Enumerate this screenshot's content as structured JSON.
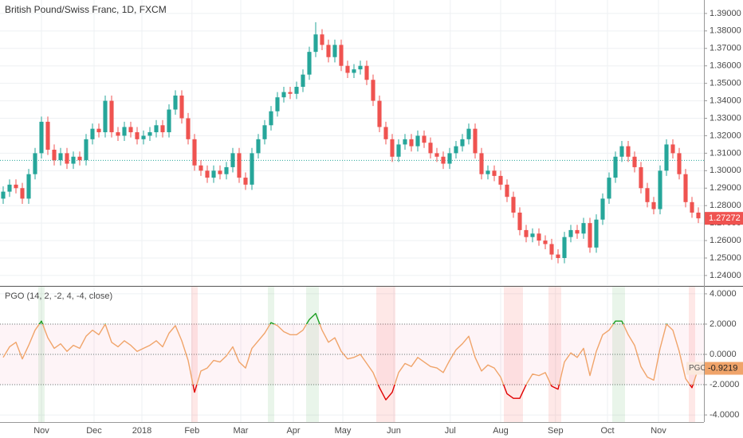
{
  "chart_data": [
    {
      "type": "candlestick",
      "title": "British Pound/Swiss Franc, 1D, FXCM",
      "up_color": "#26a69a",
      "down_color": "#ef5350",
      "ref_line": 1.3059,
      "ref_color": "#26a69a",
      "grid": true,
      "xlim": [
        -0.5,
        109.875
      ],
      "ylim": [
        1.2345,
        1.3977
      ],
      "yticks": [
        {
          "value": 1.39,
          "label": "1.39000"
        },
        {
          "value": 1.38,
          "label": "1.38000"
        },
        {
          "value": 1.37,
          "label": "1.37000"
        },
        {
          "value": 1.36,
          "label": "1.36000"
        },
        {
          "value": 1.35,
          "label": "1.35000"
        },
        {
          "value": 1.34,
          "label": "1.34000"
        },
        {
          "value": 1.33,
          "label": "1.33000"
        },
        {
          "value": 1.32,
          "label": "1.32000"
        },
        {
          "value": 1.31,
          "label": "1.31000"
        },
        {
          "value": 1.3,
          "label": "1.30000"
        },
        {
          "value": 1.29,
          "label": "1.29000"
        },
        {
          "value": 1.28,
          "label": "1.28000"
        },
        {
          "value": 1.27,
          "label": "1.27000"
        },
        {
          "value": 1.26,
          "label": "1.26000"
        },
        {
          "value": 1.25,
          "label": "1.25000"
        },
        {
          "value": 1.24,
          "label": "1.24000"
        }
      ],
      "open": [
        1.284,
        1.288,
        1.292,
        1.29,
        1.284,
        1.298,
        1.31,
        1.328,
        1.312,
        1.306,
        1.31,
        1.304,
        1.308,
        1.306,
        1.318,
        1.324,
        1.322,
        1.34,
        1.322,
        1.32,
        1.325,
        1.322,
        1.318,
        1.32,
        1.322,
        1.326,
        1.322,
        1.335,
        1.343,
        1.33,
        1.318,
        1.303,
        1.3,
        1.296,
        1.3,
        1.298,
        1.302,
        1.31,
        1.296,
        1.292,
        1.31,
        1.318,
        1.326,
        1.334,
        1.342,
        1.345,
        1.344,
        1.348,
        1.355,
        1.368,
        1.378,
        1.372,
        1.365,
        1.372,
        1.36,
        1.356,
        1.358,
        1.36,
        1.352,
        1.34,
        1.325,
        1.318,
        1.308,
        1.315,
        1.318,
        1.314,
        1.32,
        1.316,
        1.31,
        1.308,
        1.304,
        1.31,
        1.314,
        1.318,
        1.324,
        1.31,
        1.298,
        1.3,
        1.297,
        1.292,
        1.285,
        1.276,
        1.266,
        1.262,
        1.264,
        1.26,
        1.258,
        1.252,
        1.25,
        1.262,
        1.266,
        1.264,
        1.27,
        1.256,
        1.272,
        1.284,
        1.296,
        1.308,
        1.314,
        1.308,
        1.302,
        1.29,
        1.282,
        1.278,
        1.3,
        1.315,
        1.31,
        1.298,
        1.282,
        1.276
      ],
      "high": [
        1.291,
        1.295,
        1.295,
        1.293,
        1.301,
        1.313,
        1.331,
        1.331,
        1.315,
        1.313,
        1.313,
        1.311,
        1.311,
        1.321,
        1.327,
        1.327,
        1.343,
        1.343,
        1.325,
        1.328,
        1.328,
        1.325,
        1.323,
        1.325,
        1.329,
        1.329,
        1.338,
        1.346,
        1.346,
        1.333,
        1.321,
        1.306,
        1.303,
        1.303,
        1.303,
        1.305,
        1.313,
        1.313,
        1.299,
        1.313,
        1.321,
        1.329,
        1.337,
        1.345,
        1.348,
        1.348,
        1.351,
        1.358,
        1.371,
        1.385,
        1.381,
        1.375,
        1.375,
        1.375,
        1.363,
        1.361,
        1.363,
        1.363,
        1.355,
        1.343,
        1.328,
        1.321,
        1.318,
        1.321,
        1.321,
        1.323,
        1.323,
        1.319,
        1.313,
        1.311,
        1.313,
        1.317,
        1.321,
        1.327,
        1.327,
        1.313,
        1.303,
        1.303,
        1.3,
        1.295,
        1.288,
        1.279,
        1.269,
        1.267,
        1.267,
        1.263,
        1.261,
        1.255,
        1.265,
        1.269,
        1.269,
        1.273,
        1.273,
        1.275,
        1.287,
        1.299,
        1.311,
        1.317,
        1.317,
        1.311,
        1.305,
        1.293,
        1.285,
        1.303,
        1.318,
        1.318,
        1.313,
        1.301,
        1.285,
        1.279
      ],
      "low": [
        1.281,
        1.285,
        1.287,
        1.281,
        1.281,
        1.295,
        1.307,
        1.309,
        1.303,
        1.303,
        1.301,
        1.301,
        1.303,
        1.303,
        1.315,
        1.319,
        1.319,
        1.319,
        1.317,
        1.317,
        1.319,
        1.315,
        1.315,
        1.317,
        1.319,
        1.319,
        1.319,
        1.332,
        1.327,
        1.315,
        1.3,
        1.297,
        1.293,
        1.293,
        1.295,
        1.295,
        1.299,
        1.293,
        1.289,
        1.289,
        1.307,
        1.315,
        1.323,
        1.331,
        1.339,
        1.341,
        1.341,
        1.345,
        1.352,
        1.365,
        1.369,
        1.362,
        1.362,
        1.357,
        1.353,
        1.353,
        1.355,
        1.349,
        1.337,
        1.322,
        1.315,
        1.305,
        1.305,
        1.312,
        1.311,
        1.311,
        1.313,
        1.307,
        1.305,
        1.301,
        1.301,
        1.307,
        1.311,
        1.315,
        1.307,
        1.295,
        1.295,
        1.294,
        1.289,
        1.282,
        1.273,
        1.263,
        1.259,
        1.259,
        1.257,
        1.255,
        1.249,
        1.247,
        1.247,
        1.259,
        1.261,
        1.261,
        1.253,
        1.253,
        1.269,
        1.281,
        1.293,
        1.305,
        1.305,
        1.299,
        1.287,
        1.279,
        1.275,
        1.275,
        1.297,
        1.307,
        1.295,
        1.279,
        1.273,
        1.27
      ],
      "close": [
        1.288,
        1.292,
        1.29,
        1.284,
        1.298,
        1.31,
        1.328,
        1.312,
        1.306,
        1.31,
        1.304,
        1.308,
        1.306,
        1.318,
        1.324,
        1.322,
        1.34,
        1.322,
        1.32,
        1.325,
        1.322,
        1.318,
        1.32,
        1.322,
        1.326,
        1.322,
        1.335,
        1.343,
        1.33,
        1.318,
        1.303,
        1.3,
        1.296,
        1.3,
        1.298,
        1.302,
        1.31,
        1.296,
        1.292,
        1.31,
        1.318,
        1.326,
        1.334,
        1.342,
        1.345,
        1.344,
        1.348,
        1.355,
        1.368,
        1.378,
        1.372,
        1.365,
        1.372,
        1.36,
        1.356,
        1.358,
        1.36,
        1.352,
        1.34,
        1.325,
        1.318,
        1.308,
        1.315,
        1.318,
        1.314,
        1.32,
        1.316,
        1.31,
        1.308,
        1.304,
        1.31,
        1.314,
        1.318,
        1.324,
        1.31,
        1.298,
        1.3,
        1.297,
        1.292,
        1.285,
        1.276,
        1.266,
        1.262,
        1.264,
        1.26,
        1.258,
        1.252,
        1.25,
        1.262,
        1.266,
        1.264,
        1.27,
        1.256,
        1.272,
        1.284,
        1.296,
        1.308,
        1.314,
        1.308,
        1.302,
        1.29,
        1.282,
        1.278,
        1.3,
        1.315,
        1.31,
        1.298,
        1.282,
        1.276,
        1.27272
      ]
    },
    {
      "type": "line",
      "title": "PGO (14, 2, -2, 4, -4, close)",
      "xlim": [
        -0.5,
        109.875
      ],
      "ylim": [
        -4.47,
        4.47
      ],
      "xticks": [
        {
          "value": 6,
          "label": "Nov"
        },
        {
          "value": 14.25,
          "label": "Dec"
        },
        {
          "value": 21.75,
          "label": "2018"
        },
        {
          "value": 29.6,
          "label": "Feb"
        },
        {
          "value": 37.25,
          "label": "Mar"
        },
        {
          "value": 45.5,
          "label": "Apr"
        },
        {
          "value": 53.25,
          "label": "May"
        },
        {
          "value": 61.25,
          "label": "Jun"
        },
        {
          "value": 70.1,
          "label": "Jul"
        },
        {
          "value": 78,
          "label": "Aug"
        },
        {
          "value": 86.6,
          "label": "Sep"
        },
        {
          "value": 94.75,
          "label": "Oct"
        },
        {
          "value": 102.75,
          "label": "Nov"
        }
      ],
      "yticks": [
        {
          "value": 4,
          "label": "4.0000"
        },
        {
          "value": 2,
          "label": "2.0000"
        },
        {
          "value": 0,
          "label": "0.0000"
        },
        {
          "value": -2,
          "label": "-2.0000"
        },
        {
          "value": -4,
          "label": "-4.0000"
        }
      ],
      "hlines": [
        2,
        0,
        -2
      ],
      "upper_level": 2,
      "lower_level": -2,
      "upper_color": "#1b9e20",
      "lower_color": "#e00000",
      "series": [
        {
          "name": "PGO",
          "color": "#f0a46a",
          "values": [
            -0.2,
            0.5,
            0.8,
            -0.3,
            0.6,
            1.6,
            2.2,
            1.1,
            0.4,
            0.7,
            0.2,
            0.6,
            0.4,
            1.2,
            1.6,
            1.3,
            2.0,
            0.8,
            0.5,
            0.9,
            0.6,
            0.2,
            0.4,
            0.6,
            0.9,
            0.5,
            1.4,
            1.9,
            0.9,
            -0.4,
            -2.5,
            -1.1,
            -0.9,
            -0.4,
            -0.5,
            -0.1,
            0.5,
            -0.5,
            -0.9,
            0.4,
            0.9,
            1.4,
            2.1,
            1.9,
            1.5,
            1.3,
            1.3,
            1.6,
            2.3,
            2.7,
            1.6,
            0.8,
            1.1,
            0.2,
            -0.3,
            -0.2,
            0.0,
            -0.6,
            -1.2,
            -2.2,
            -3.0,
            -2.5,
            -1.2,
            -0.6,
            -0.8,
            -0.2,
            -0.5,
            -0.8,
            -0.9,
            -1.2,
            -0.4,
            0.3,
            0.7,
            1.2,
            -0.2,
            -1.1,
            -0.7,
            -0.9,
            -1.5,
            -2.6,
            -2.9,
            -2.9,
            -2.0,
            -1.3,
            -1.4,
            -1.2,
            -2.1,
            -2.3,
            -0.5,
            0.1,
            -0.2,
            0.4,
            -1.4,
            0.2,
            1.3,
            1.6,
            2.2,
            2.2,
            1.3,
            0.6,
            -0.8,
            -1.5,
            -1.7,
            0.4,
            2.0,
            1.6,
            0.2,
            -1.6,
            -2.2,
            -0.9219
          ]
        }
      ]
    }
  ]
}
